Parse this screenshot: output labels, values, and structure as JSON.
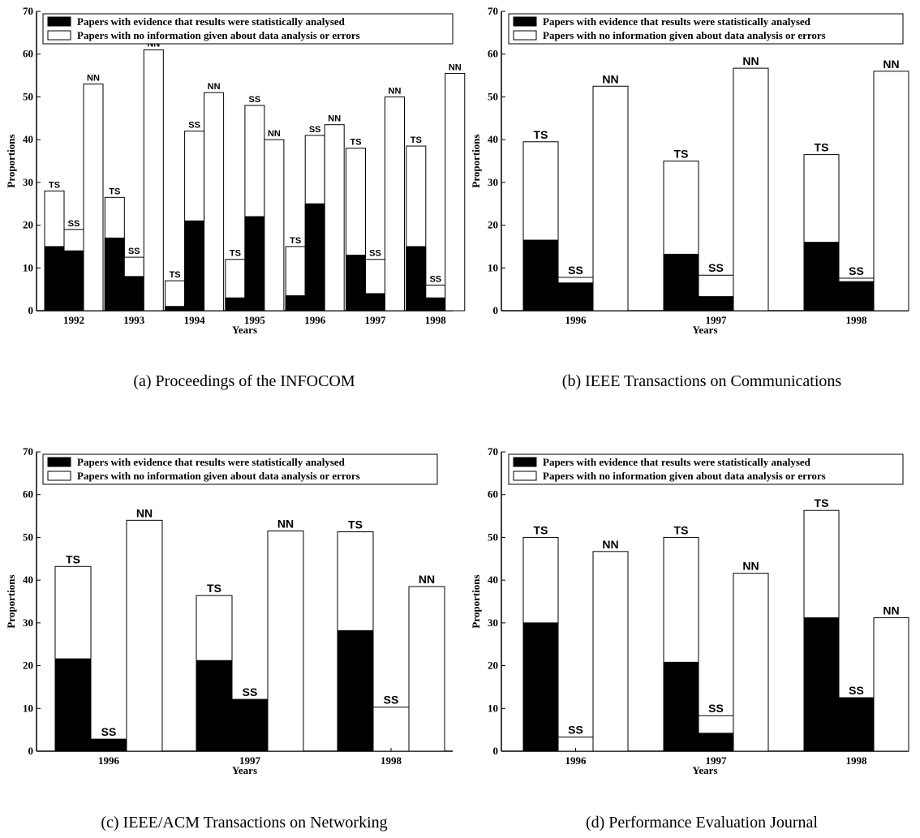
{
  "legend": {
    "black": "Papers with evidence that results were statistically analysed",
    "white": "Papers with no information given about data analysis or errors"
  },
  "colors": {
    "black": "#000000",
    "white": "#ffffff"
  },
  "chart_data": [
    {
      "type": "bar",
      "caption": "(a) Proceedings of the INFOCOM",
      "xlabel": "Years",
      "ylabel": "Proportions",
      "ylim": [
        0,
        70
      ],
      "yticks": [
        0,
        10,
        20,
        30,
        40,
        50,
        60,
        70
      ],
      "categories": [
        "1992",
        "1993",
        "1994",
        "1995",
        "1996",
        "1997",
        "1998"
      ],
      "groups": [
        {
          "year": "1992",
          "bars": [
            {
              "label": "TS",
              "black": 15,
              "total": 28
            },
            {
              "label": "SS",
              "black": 14,
              "total": 19
            },
            {
              "label": "NN",
              "black": 0,
              "total": 53
            }
          ]
        },
        {
          "year": "1993",
          "bars": [
            {
              "label": "TS",
              "black": 17,
              "total": 26.5
            },
            {
              "label": "SS",
              "black": 8,
              "total": 12.5
            },
            {
              "label": "NN",
              "black": 0,
              "total": 61
            }
          ]
        },
        {
          "year": "1994",
          "bars": [
            {
              "label": "TS",
              "black": 1,
              "total": 7
            },
            {
              "label": "SS",
              "black": 21,
              "total": 42
            },
            {
              "label": "NN",
              "black": 0,
              "total": 51
            }
          ]
        },
        {
          "year": "1995",
          "bars": [
            {
              "label": "TS",
              "black": 3,
              "total": 12
            },
            {
              "label": "SS",
              "black": 22,
              "total": 48
            },
            {
              "label": "NN",
              "black": 0,
              "total": 40
            }
          ]
        },
        {
          "year": "1996",
          "bars": [
            {
              "label": "TS",
              "black": 3.5,
              "total": 15
            },
            {
              "label": "SS",
              "black": 25,
              "total": 41
            },
            {
              "label": "NN",
              "black": 0,
              "total": 43.5
            }
          ]
        },
        {
          "year": "1997",
          "bars": [
            {
              "label": "TS",
              "black": 13,
              "total": 38
            },
            {
              "label": "SS",
              "black": 4,
              "total": 12
            },
            {
              "label": "NN",
              "black": 0,
              "total": 50
            }
          ]
        },
        {
          "year": "1998",
          "bars": [
            {
              "label": "TS",
              "black": 15,
              "total": 38.5
            },
            {
              "label": "SS",
              "black": 3,
              "total": 6
            },
            {
              "label": "NN",
              "black": 0,
              "total": 55.5
            }
          ]
        }
      ]
    },
    {
      "type": "bar",
      "caption": "(b) IEEE Transactions on Communications",
      "xlabel": "Years",
      "ylabel": "Proportions",
      "ylim": [
        0,
        70
      ],
      "yticks": [
        0,
        10,
        20,
        30,
        40,
        50,
        60,
        70
      ],
      "categories": [
        "1996",
        "1997",
        "1998"
      ],
      "groups": [
        {
          "year": "1996",
          "bars": [
            {
              "label": "TS",
              "black": 16.5,
              "total": 39.5
            },
            {
              "label": "SS",
              "black": 6.5,
              "total": 7.8
            },
            {
              "label": "NN",
              "black": 0,
              "total": 52.5
            }
          ]
        },
        {
          "year": "1997",
          "bars": [
            {
              "label": "TS",
              "black": 13.2,
              "total": 35
            },
            {
              "label": "SS",
              "black": 3.3,
              "total": 8.3
            },
            {
              "label": "NN",
              "black": 0,
              "total": 56.7
            }
          ]
        },
        {
          "year": "1998",
          "bars": [
            {
              "label": "TS",
              "black": 16,
              "total": 36.5
            },
            {
              "label": "SS",
              "black": 6.8,
              "total": 7.6
            },
            {
              "label": "NN",
              "black": 0,
              "total": 56
            }
          ]
        }
      ]
    },
    {
      "type": "bar",
      "caption": "(c) IEEE/ACM Transactions on Networking",
      "xlabel": "Years",
      "ylabel": "Proportions",
      "ylim": [
        0,
        70
      ],
      "yticks": [
        0,
        10,
        20,
        30,
        40,
        50,
        60,
        70
      ],
      "categories": [
        "1996",
        "1997",
        "1998"
      ],
      "groups": [
        {
          "year": "1996",
          "bars": [
            {
              "label": "TS",
              "black": 21.6,
              "total": 43.2
            },
            {
              "label": "SS",
              "black": 2.8,
              "total": 2.8
            },
            {
              "label": "NN",
              "black": 0,
              "total": 54
            }
          ]
        },
        {
          "year": "1997",
          "bars": [
            {
              "label": "TS",
              "black": 21.2,
              "total": 36.4
            },
            {
              "label": "SS",
              "black": 12.1,
              "total": 12.1
            },
            {
              "label": "NN",
              "black": 0,
              "total": 51.5
            }
          ]
        },
        {
          "year": "1998",
          "bars": [
            {
              "label": "TS",
              "black": 28.2,
              "total": 51.3
            },
            {
              "label": "SS",
              "black": 0,
              "total": 10.3
            },
            {
              "label": "NN",
              "black": 0,
              "total": 38.5
            }
          ]
        }
      ]
    },
    {
      "type": "bar",
      "caption": "(d) Performance Evaluation Journal",
      "xlabel": "Years",
      "ylabel": "Proportions",
      "ylim": [
        0,
        70
      ],
      "yticks": [
        0,
        10,
        20,
        30,
        40,
        50,
        60,
        70
      ],
      "categories": [
        "1996",
        "1997",
        "1998"
      ],
      "groups": [
        {
          "year": "1996",
          "bars": [
            {
              "label": "TS",
              "black": 30,
              "total": 50
            },
            {
              "label": "SS",
              "black": 0,
              "total": 3.3
            },
            {
              "label": "NN",
              "black": 0,
              "total": 46.7
            }
          ]
        },
        {
          "year": "1997",
          "bars": [
            {
              "label": "TS",
              "black": 20.8,
              "total": 50
            },
            {
              "label": "SS",
              "black": 4.2,
              "total": 8.3
            },
            {
              "label": "NN",
              "black": 0,
              "total": 41.6
            }
          ]
        },
        {
          "year": "1998",
          "bars": [
            {
              "label": "TS",
              "black": 31.2,
              "total": 56.3
            },
            {
              "label": "SS",
              "black": 12.5,
              "total": 12.5
            },
            {
              "label": "NN",
              "black": 0,
              "total": 31.2
            }
          ]
        }
      ]
    }
  ]
}
